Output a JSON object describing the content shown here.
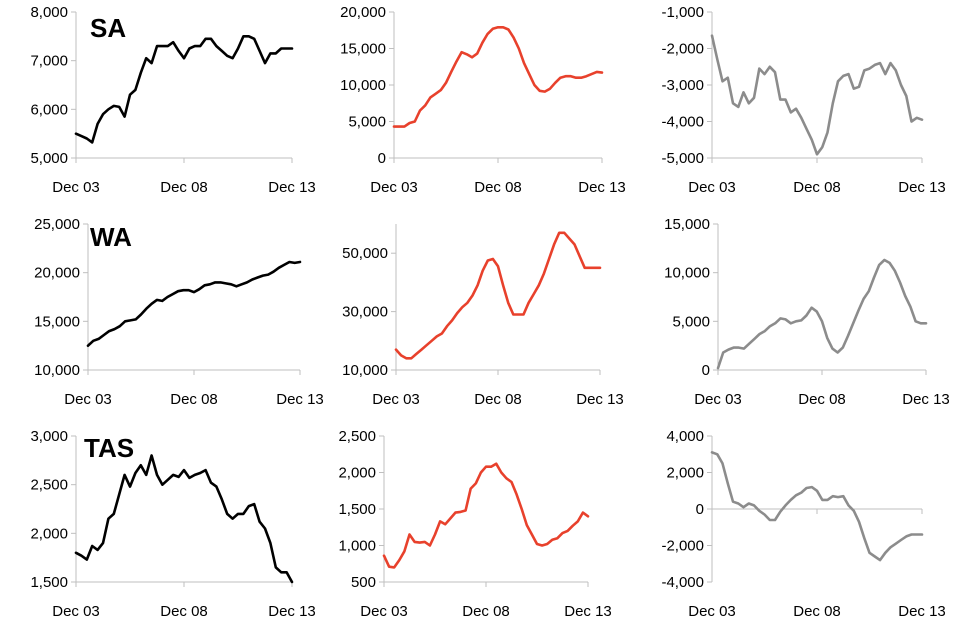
{
  "colors": {
    "col1": "#000000",
    "col2": "#e8412c",
    "col3": "#8c8c8c",
    "axis": "#bfbfbf"
  },
  "chart_data": [
    {
      "type": "line",
      "row_label": "SA",
      "color": "#000000",
      "ylim": [
        5000,
        8000
      ],
      "yticks": [
        "5,000",
        "6,000",
        "7,000",
        "8,000"
      ],
      "xticks": [
        "Dec 03",
        "Dec 08",
        "Dec 13"
      ],
      "x": [
        0,
        1,
        2,
        3,
        4,
        5,
        6,
        7,
        8,
        9,
        10,
        11,
        12,
        13,
        14,
        15,
        16,
        17,
        18,
        19,
        20,
        21,
        22,
        23,
        24,
        25,
        26,
        27,
        28,
        29,
        30,
        31,
        32,
        33,
        34,
        35,
        36,
        37,
        38,
        39,
        40
      ],
      "values": [
        5500,
        5450,
        5400,
        5320,
        5700,
        5900,
        6000,
        6070,
        6050,
        5850,
        6300,
        6400,
        6750,
        7050,
        6950,
        7300,
        7300,
        7300,
        7380,
        7200,
        7050,
        7250,
        7300,
        7300,
        7450,
        7450,
        7300,
        7200,
        7100,
        7050,
        7250,
        7500,
        7500,
        7450,
        7200,
        6950,
        7150,
        7150,
        7250,
        7250,
        7250
      ]
    },
    {
      "type": "line",
      "row_label": "",
      "color": "#e8412c",
      "ylim": [
        0,
        20000
      ],
      "yticks": [
        "0",
        "5,000",
        "10,000",
        "15,000",
        "20,000"
      ],
      "xticks": [
        "Dec 03",
        "Dec 08",
        "Dec 13"
      ],
      "x": [
        0,
        1,
        2,
        3,
        4,
        5,
        6,
        7,
        8,
        9,
        10,
        11,
        12,
        13,
        14,
        15,
        16,
        17,
        18,
        19,
        20,
        21,
        22,
        23,
        24,
        25,
        26,
        27,
        28,
        29,
        30,
        31,
        32,
        33,
        34,
        35,
        36,
        37,
        38,
        39,
        40
      ],
      "values": [
        4300,
        4300,
        4300,
        4800,
        5000,
        6500,
        7200,
        8300,
        8800,
        9300,
        10300,
        11800,
        13200,
        14500,
        14200,
        13800,
        14300,
        15800,
        17000,
        17700,
        17900,
        17900,
        17600,
        16500,
        15000,
        13000,
        11500,
        10000,
        9200,
        9100,
        9500,
        10300,
        11000,
        11200,
        11200,
        11000,
        11000,
        11200,
        11500,
        11800,
        11700
      ]
    },
    {
      "type": "line",
      "row_label": "",
      "color": "#8c8c8c",
      "ylim": [
        -5000,
        -1000
      ],
      "yticks": [
        "-5,000",
        "-4,000",
        "-3,000",
        "-2,000",
        "-1,000"
      ],
      "xticks": [
        "Dec 03",
        "Dec 08",
        "Dec 13"
      ],
      "x": [
        0,
        1,
        2,
        3,
        4,
        5,
        6,
        7,
        8,
        9,
        10,
        11,
        12,
        13,
        14,
        15,
        16,
        17,
        18,
        19,
        20,
        21,
        22,
        23,
        24,
        25,
        26,
        27,
        28,
        29,
        30,
        31,
        32,
        33,
        34,
        35,
        36,
        37,
        38,
        39,
        40
      ],
      "values": [
        -1650,
        -2300,
        -2900,
        -2800,
        -3500,
        -3600,
        -3200,
        -3500,
        -3350,
        -2550,
        -2700,
        -2500,
        -2650,
        -3400,
        -3400,
        -3750,
        -3650,
        -3900,
        -4200,
        -4500,
        -4900,
        -4700,
        -4300,
        -3500,
        -2900,
        -2750,
        -2700,
        -3100,
        -3050,
        -2600,
        -2550,
        -2450,
        -2400,
        -2700,
        -2400,
        -2600,
        -3000,
        -3300,
        -4000,
        -3900,
        -3950
      ]
    },
    {
      "type": "line",
      "row_label": "WA",
      "color": "#000000",
      "ylim": [
        10000,
        25000
      ],
      "yticks": [
        "10,000",
        "15,000",
        "20,000",
        "25,000"
      ],
      "xticks": [
        "Dec 03",
        "Dec 08",
        "Dec 13"
      ],
      "x": [
        0,
        1,
        2,
        3,
        4,
        5,
        6,
        7,
        8,
        9,
        10,
        11,
        12,
        13,
        14,
        15,
        16,
        17,
        18,
        19,
        20,
        21,
        22,
        23,
        24,
        25,
        26,
        27,
        28,
        29,
        30,
        31,
        32,
        33,
        34,
        35,
        36,
        37,
        38,
        39,
        40
      ],
      "values": [
        12500,
        13000,
        13200,
        13600,
        14000,
        14200,
        14500,
        15000,
        15100,
        15200,
        15700,
        16300,
        16800,
        17200,
        17100,
        17500,
        17800,
        18100,
        18200,
        18200,
        18000,
        18300,
        18700,
        18800,
        19000,
        19000,
        18900,
        18800,
        18600,
        18800,
        19000,
        19300,
        19500,
        19700,
        19800,
        20100,
        20500,
        20800,
        21100,
        21000,
        21100
      ]
    },
    {
      "type": "line",
      "row_label": "",
      "color": "#e8412c",
      "ylim": [
        10000,
        60000
      ],
      "yticks": [
        "10,000",
        "30,000",
        "50,000"
      ],
      "xticks": [
        "Dec 03",
        "Dec 08",
        "Dec 13"
      ],
      "x": [
        0,
        1,
        2,
        3,
        4,
        5,
        6,
        7,
        8,
        9,
        10,
        11,
        12,
        13,
        14,
        15,
        16,
        17,
        18,
        19,
        20,
        21,
        22,
        23,
        24,
        25,
        26,
        27,
        28,
        29,
        30,
        31,
        32,
        33,
        34,
        35,
        36,
        37,
        38,
        39,
        40
      ],
      "values": [
        17000,
        15000,
        14000,
        14000,
        15500,
        17000,
        18500,
        20000,
        21500,
        22500,
        25000,
        27000,
        29500,
        31500,
        33000,
        35500,
        39000,
        44000,
        47500,
        48000,
        45500,
        39000,
        33000,
        29000,
        29000,
        29000,
        33000,
        36000,
        39000,
        43000,
        48000,
        53000,
        57000,
        57000,
        55000,
        53000,
        49000,
        45000,
        45000,
        45000,
        45000
      ]
    },
    {
      "type": "line",
      "row_label": "",
      "color": "#8c8c8c",
      "ylim": [
        0,
        15000
      ],
      "yticks": [
        "0",
        "5,000",
        "10,000",
        "15,000"
      ],
      "xticks": [
        "Dec 03",
        "Dec 08",
        "Dec 13"
      ],
      "x": [
        0,
        1,
        2,
        3,
        4,
        5,
        6,
        7,
        8,
        9,
        10,
        11,
        12,
        13,
        14,
        15,
        16,
        17,
        18,
        19,
        20,
        21,
        22,
        23,
        24,
        25,
        26,
        27,
        28,
        29,
        30,
        31,
        32,
        33,
        34,
        35,
        36,
        37,
        38,
        39,
        40
      ],
      "values": [
        200,
        1800,
        2100,
        2300,
        2300,
        2200,
        2700,
        3200,
        3700,
        4000,
        4500,
        4800,
        5300,
        5200,
        4800,
        5000,
        5100,
        5600,
        6400,
        6000,
        5000,
        3300,
        2200,
        1800,
        2300,
        3500,
        4800,
        6100,
        7300,
        8100,
        9500,
        10800,
        11300,
        11000,
        10200,
        9000,
        7600,
        6500,
        5000,
        4800,
        4800
      ]
    },
    {
      "type": "line",
      "row_label": "TAS",
      "color": "#000000",
      "ylim": [
        1500,
        3000
      ],
      "yticks": [
        "1,500",
        "2,000",
        "2,500",
        "3,000"
      ],
      "xticks": [
        "Dec 03",
        "Dec 08",
        "Dec 13"
      ],
      "x": [
        0,
        1,
        2,
        3,
        4,
        5,
        6,
        7,
        8,
        9,
        10,
        11,
        12,
        13,
        14,
        15,
        16,
        17,
        18,
        19,
        20,
        21,
        22,
        23,
        24,
        25,
        26,
        27,
        28,
        29,
        30,
        31,
        32,
        33,
        34,
        35,
        36,
        37,
        38,
        39,
        40
      ],
      "values": [
        1800,
        1770,
        1730,
        1870,
        1830,
        1900,
        2150,
        2200,
        2400,
        2600,
        2480,
        2620,
        2700,
        2600,
        2800,
        2600,
        2500,
        2550,
        2600,
        2580,
        2650,
        2570,
        2600,
        2620,
        2650,
        2520,
        2480,
        2350,
        2200,
        2150,
        2200,
        2200,
        2280,
        2300,
        2120,
        2050,
        1900,
        1650,
        1600,
        1600,
        1500
      ]
    },
    {
      "type": "line",
      "row_label": "",
      "color": "#e8412c",
      "ylim": [
        500,
        2500
      ],
      "yticks": [
        "500",
        "1,000",
        "1,500",
        "2,000",
        "2,500"
      ],
      "xticks": [
        "Dec 03",
        "Dec 08",
        "Dec 13"
      ],
      "x": [
        0,
        1,
        2,
        3,
        4,
        5,
        6,
        7,
        8,
        9,
        10,
        11,
        12,
        13,
        14,
        15,
        16,
        17,
        18,
        19,
        20,
        21,
        22,
        23,
        24,
        25,
        26,
        27,
        28,
        29,
        30,
        31,
        32,
        33,
        34,
        35,
        36,
        37,
        38,
        39,
        40
      ],
      "values": [
        860,
        710,
        700,
        800,
        920,
        1150,
        1050,
        1040,
        1050,
        1000,
        1150,
        1330,
        1290,
        1370,
        1450,
        1460,
        1480,
        1780,
        1850,
        2000,
        2080,
        2080,
        2120,
        2000,
        1920,
        1870,
        1700,
        1500,
        1280,
        1150,
        1020,
        1000,
        1020,
        1080,
        1100,
        1170,
        1200,
        1270,
        1330,
        1450,
        1400
      ]
    },
    {
      "type": "line",
      "row_label": "",
      "color": "#8c8c8c",
      "ylim": [
        -4000,
        4000
      ],
      "yticks": [
        "-4,000",
        "-2,000",
        "0",
        "2,000",
        "4,000"
      ],
      "xticks": [
        "Dec 03",
        "Dec 08",
        "Dec 13"
      ],
      "x": [
        0,
        1,
        2,
        3,
        4,
        5,
        6,
        7,
        8,
        9,
        10,
        11,
        12,
        13,
        14,
        15,
        16,
        17,
        18,
        19,
        20,
        21,
        22,
        23,
        24,
        25,
        26,
        27,
        28,
        29,
        30,
        31,
        32,
        33,
        34,
        35,
        36,
        37,
        38,
        39,
        40
      ],
      "values": [
        3100,
        3000,
        2500,
        1400,
        400,
        300,
        100,
        300,
        200,
        -100,
        -300,
        -600,
        -600,
        -150,
        200,
        500,
        750,
        900,
        1150,
        1200,
        1000,
        500,
        500,
        700,
        650,
        700,
        200,
        -100,
        -700,
        -1600,
        -2400,
        -2600,
        -2800,
        -2400,
        -2100,
        -1900,
        -1700,
        -1500,
        -1400,
        -1400,
        -1400
      ]
    }
  ]
}
